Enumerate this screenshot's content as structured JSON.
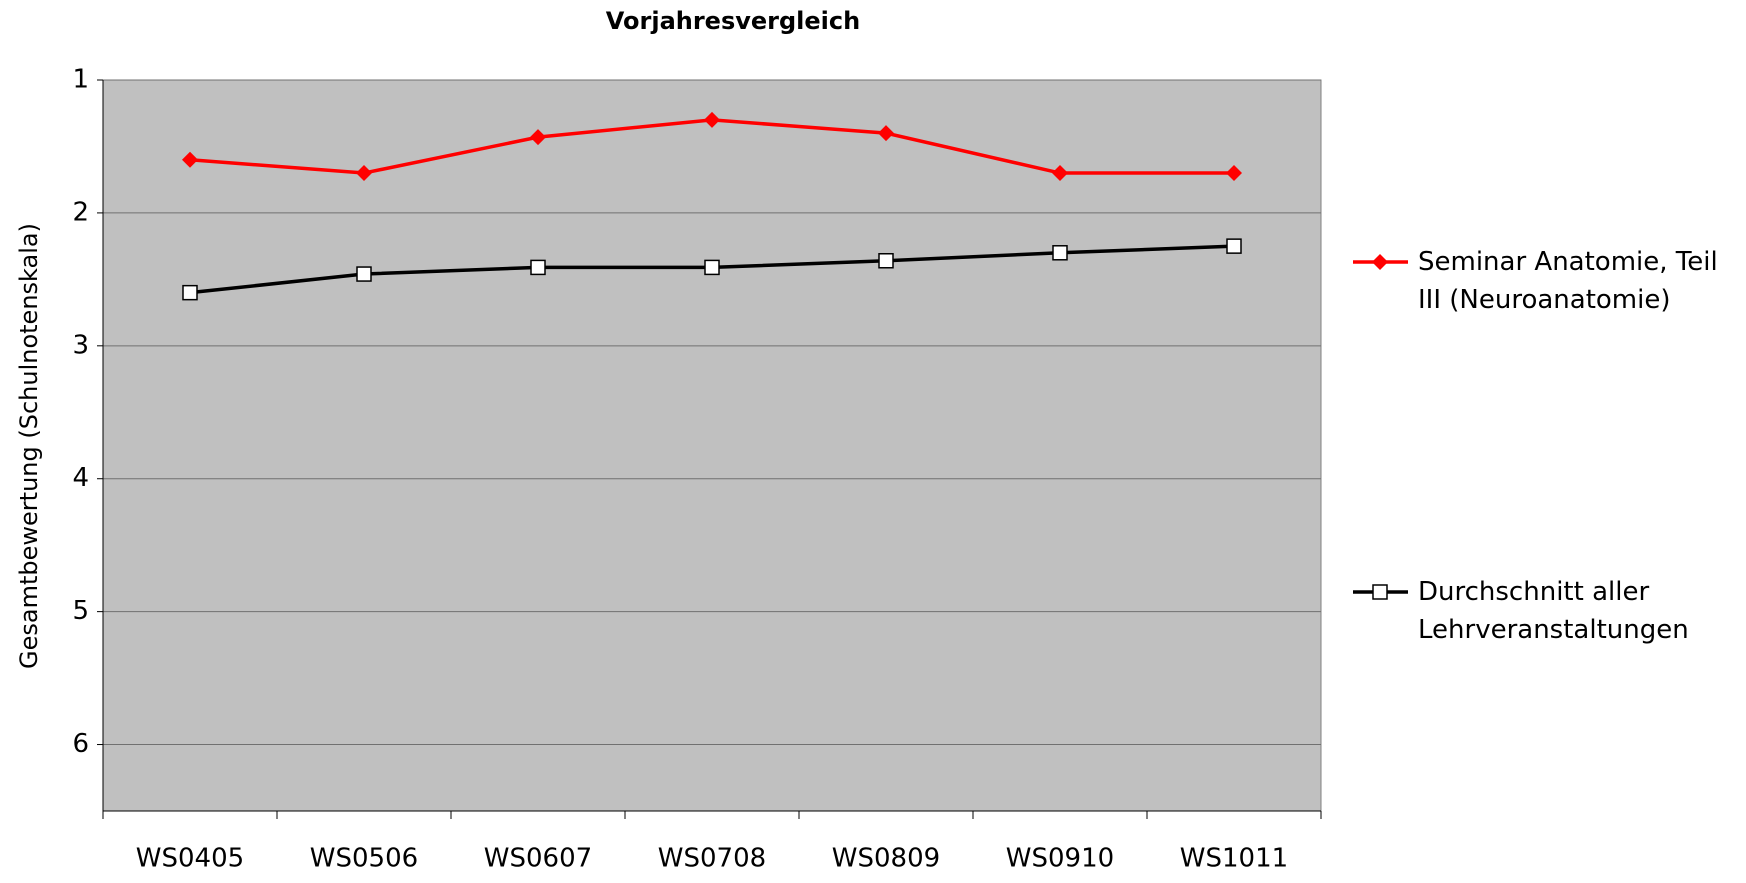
{
  "chart_data": {
    "type": "line",
    "title": "Vorjahresvergleich",
    "y_label": "Gesamtbewertung (Schulnotenskala)",
    "categories": [
      "WS0405",
      "WS0506",
      "WS0607",
      "WS0708",
      "WS0809",
      "WS0910",
      "WS1011"
    ],
    "series": [
      {
        "name": "Seminar Anatomie, Teil III (Neuroanatomie)",
        "color": "#ff0000",
        "marker": "diamond",
        "values": [
          1.6,
          1.7,
          1.43,
          1.3,
          1.4,
          1.7,
          1.7
        ]
      },
      {
        "name": "Durchschnitt aller Lehrveranstaltungen",
        "color": "#000000",
        "marker": "square",
        "values": [
          2.6,
          2.46,
          2.41,
          2.41,
          2.36,
          2.3,
          2.25
        ]
      }
    ],
    "ylim": [
      1,
      6.5
    ],
    "yticks": [
      1,
      2,
      3,
      4,
      5,
      6
    ],
    "y_inverted": true,
    "grid": true,
    "legend": "right",
    "plot_background": "#c0c0c0"
  }
}
